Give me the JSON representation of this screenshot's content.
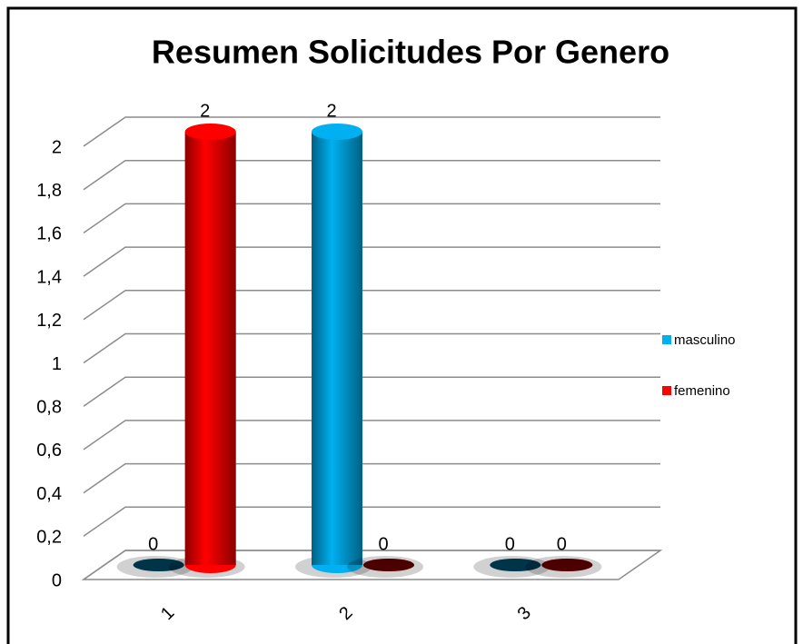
{
  "chart_data": {
    "type": "bar3d",
    "title": "Resumen Solicitudes Por Genero",
    "categories": [
      "1",
      "2",
      "3"
    ],
    "series": [
      {
        "name": "masculino",
        "color": "#00b0f0",
        "values": [
          0,
          2,
          0
        ]
      },
      {
        "name": "femenino",
        "color": "#ff0000",
        "values": [
          2,
          0,
          0
        ]
      }
    ],
    "ylim": [
      0,
      2
    ],
    "yticks": [
      0,
      {
        "value": 0.2,
        "label": "0,2"
      },
      {
        "value": 0.4,
        "label": "0,4"
      },
      {
        "value": 0.6,
        "label": "0,6"
      },
      {
        "value": 0.8,
        "label": "0,8"
      },
      1,
      {
        "value": 1.2,
        "label": "1,2"
      },
      {
        "value": 1.4,
        "label": "1,4"
      },
      {
        "value": 1.6,
        "label": "1,6"
      },
      {
        "value": 1.8,
        "label": "1,8"
      },
      2
    ],
    "grid": true,
    "legend": "right"
  }
}
